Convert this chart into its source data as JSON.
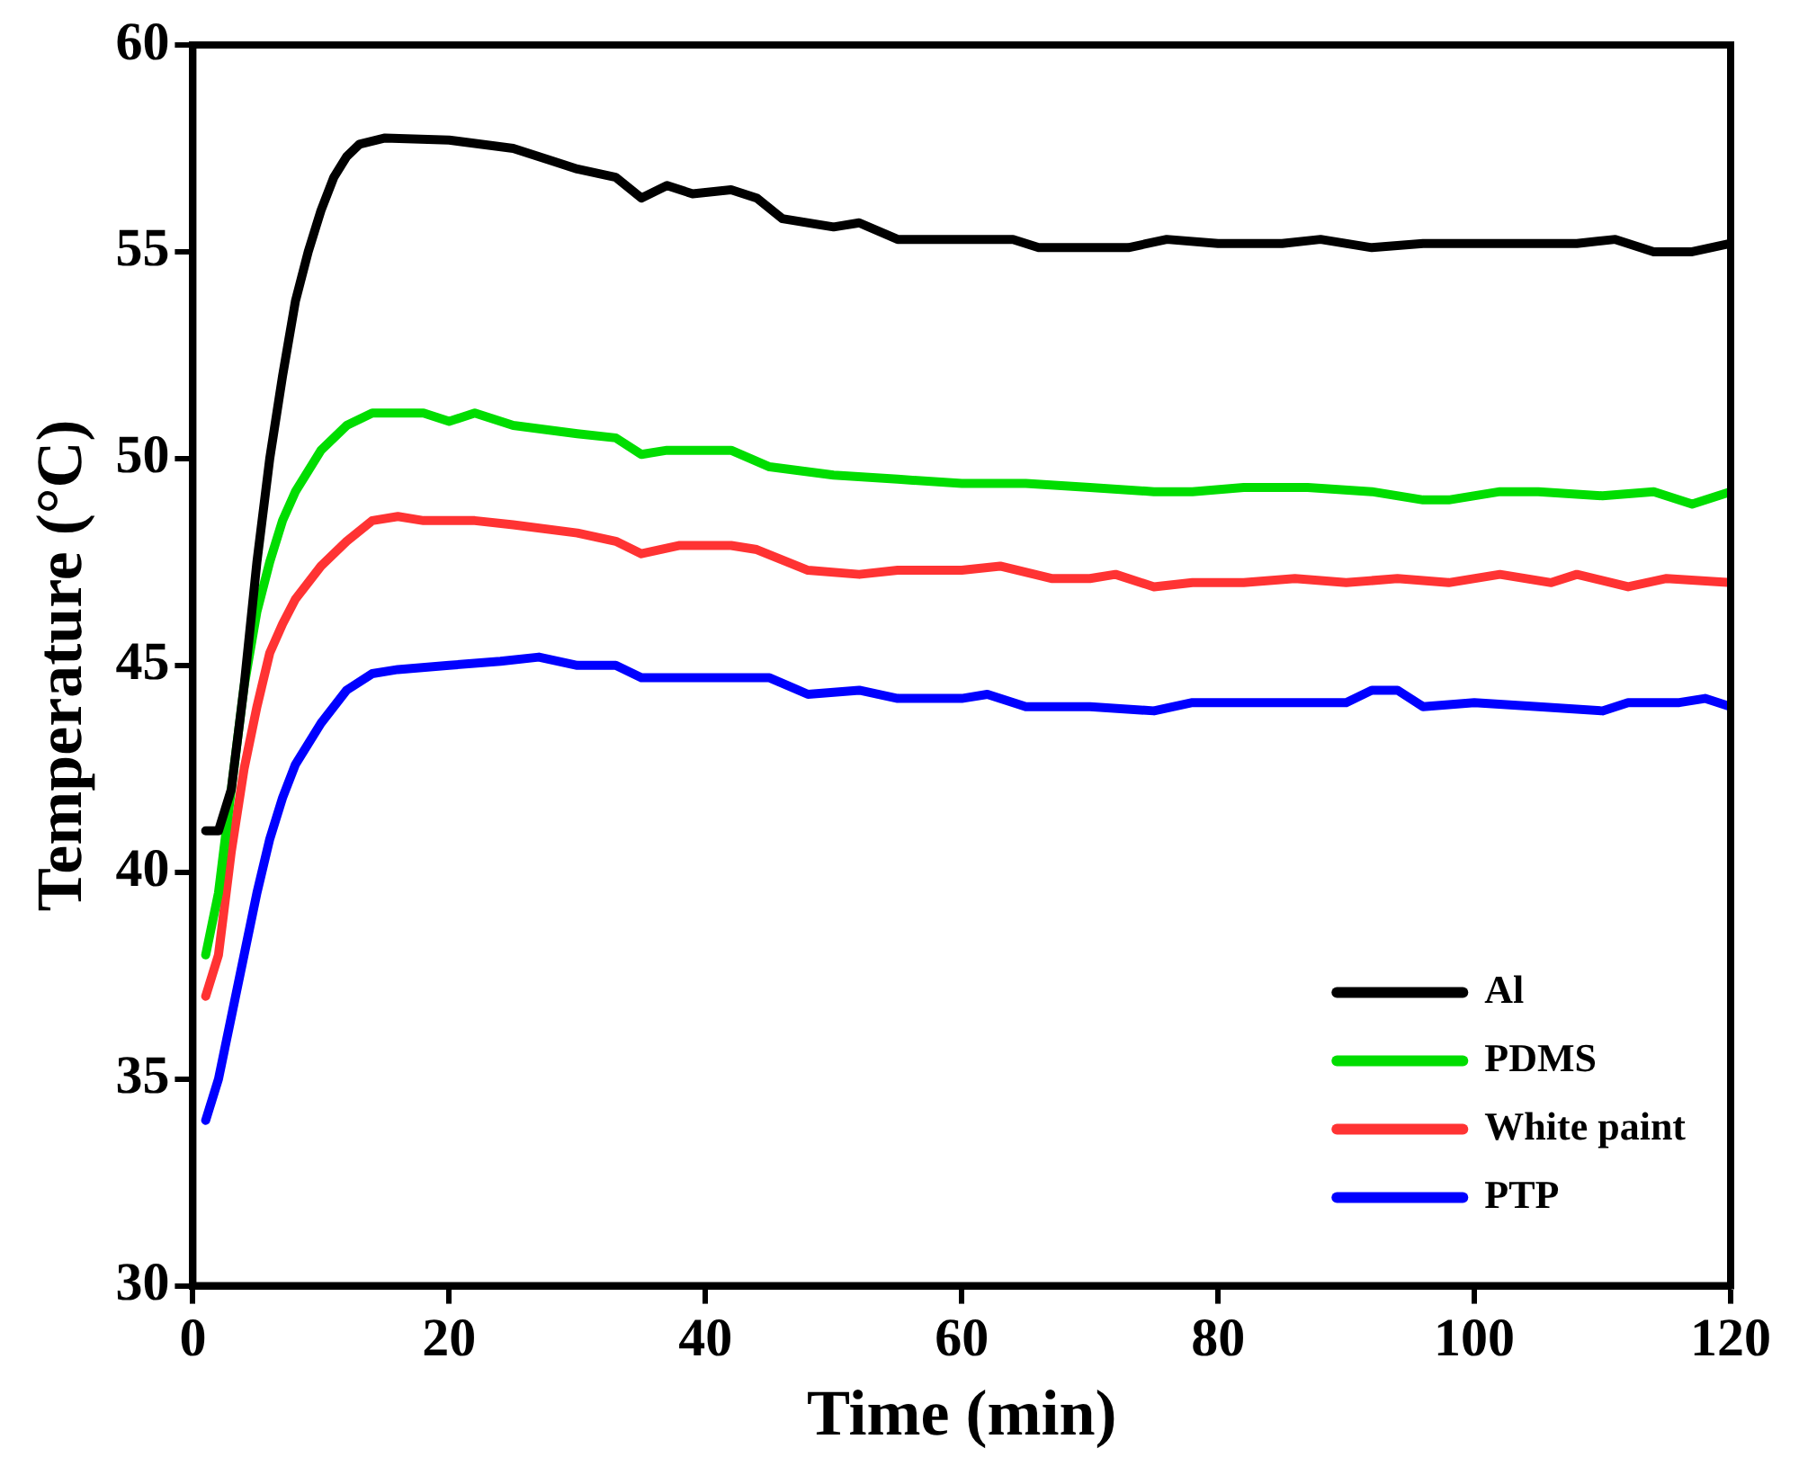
{
  "chart_data": {
    "type": "line",
    "xlabel": "Time (min)",
    "ylabel": "Temperature (°C)",
    "xlim": [
      0,
      120
    ],
    "xticks": [
      0,
      20,
      40,
      60,
      80,
      100,
      120
    ],
    "ylim": [
      30,
      60
    ],
    "yticks": [
      30,
      35,
      40,
      45,
      50,
      55,
      60
    ],
    "grid": false,
    "legend": "bottom right",
    "marker": "none",
    "line_style": "solid",
    "series": [
      {
        "name": "Al",
        "color": "#000000",
        "x": [
          1,
          2,
          3,
          4,
          5,
          6,
          7,
          8,
          9,
          10,
          11,
          12,
          13,
          15,
          20,
          25,
          28,
          30,
          33,
          35,
          37,
          39,
          42,
          44,
          46,
          50,
          52,
          55,
          60,
          64,
          66,
          70,
          73,
          76,
          80,
          85,
          88,
          92,
          96,
          100,
          104,
          108,
          111,
          114,
          117,
          120
        ],
        "values": [
          41,
          41,
          42,
          44.5,
          47.5,
          50,
          52,
          53.8,
          55,
          56,
          56.8,
          57.3,
          57.6,
          57.75,
          57.7,
          57.5,
          57.2,
          57,
          56.8,
          56.3,
          56.6,
          56.4,
          56.5,
          56.3,
          55.8,
          55.6,
          55.7,
          55.3,
          55.3,
          55.3,
          55.1,
          55.1,
          55.1,
          55.3,
          55.2,
          55.2,
          55.3,
          55.1,
          55.2,
          55.2,
          55.2,
          55.2,
          55.3,
          55,
          55,
          55.2
        ]
      },
      {
        "name": "PDMS",
        "color": "#00dd00",
        "x": [
          1,
          2,
          3,
          4,
          5,
          6,
          7,
          8,
          10,
          12,
          14,
          18,
          20,
          22,
          25,
          30,
          33,
          35,
          37,
          42,
          45,
          50,
          55,
          60,
          65,
          70,
          75,
          78,
          82,
          87,
          92,
          96,
          98,
          102,
          105,
          110,
          114,
          117,
          120
        ],
        "values": [
          38,
          39.5,
          42,
          44.5,
          46.3,
          47.5,
          48.5,
          49.2,
          50.2,
          50.8,
          51.1,
          51.1,
          50.9,
          51.1,
          50.8,
          50.6,
          50.5,
          50.1,
          50.2,
          50.2,
          49.8,
          49.6,
          49.5,
          49.4,
          49.4,
          49.3,
          49.2,
          49.2,
          49.3,
          49.3,
          49.2,
          49,
          49,
          49.2,
          49.2,
          49.1,
          49.2,
          48.9,
          49.2
        ]
      },
      {
        "name": "White paint",
        "color": "#ff3333",
        "x": [
          1,
          2,
          3,
          4,
          5,
          6,
          7,
          8,
          10,
          12,
          14,
          16,
          18,
          22,
          25,
          30,
          33,
          35,
          38,
          42,
          44,
          48,
          52,
          55,
          60,
          63,
          67,
          70,
          72,
          75,
          78,
          82,
          86,
          90,
          94,
          98,
          102,
          106,
          108,
          112,
          115,
          120
        ],
        "values": [
          37,
          38,
          40.5,
          42.5,
          44,
          45.3,
          46,
          46.6,
          47.4,
          48,
          48.5,
          48.6,
          48.5,
          48.5,
          48.4,
          48.2,
          48,
          47.7,
          47.9,
          47.9,
          47.8,
          47.3,
          47.2,
          47.3,
          47.3,
          47.4,
          47.1,
          47.1,
          47.2,
          46.9,
          47,
          47,
          47.1,
          47,
          47.1,
          47,
          47.2,
          47,
          47.2,
          46.9,
          47.1,
          47
        ]
      },
      {
        "name": "PTP",
        "color": "#0000ff",
        "x": [
          1,
          2,
          3,
          4,
          5,
          6,
          7,
          8,
          10,
          12,
          14,
          16,
          20,
          24,
          27,
          30,
          33,
          35,
          40,
          45,
          48,
          52,
          55,
          60,
          62,
          65,
          70,
          75,
          78,
          85,
          90,
          92,
          94,
          96,
          100,
          105,
          110,
          112,
          116,
          118,
          120
        ],
        "values": [
          34,
          35,
          36.5,
          38,
          39.5,
          40.8,
          41.8,
          42.6,
          43.6,
          44.4,
          44.8,
          44.9,
          45,
          45.1,
          45.2,
          45,
          45,
          44.7,
          44.7,
          44.7,
          44.3,
          44.4,
          44.2,
          44.2,
          44.3,
          44,
          44,
          43.9,
          44.1,
          44.1,
          44.1,
          44.4,
          44.4,
          44,
          44.1,
          44,
          43.9,
          44.1,
          44.1,
          44.2,
          44
        ]
      }
    ]
  }
}
